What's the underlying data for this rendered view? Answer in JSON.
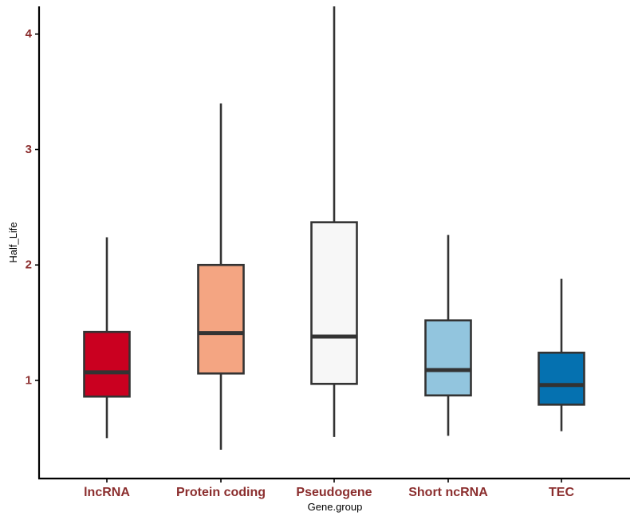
{
  "chart_data": {
    "type": "boxplot",
    "xlabel": "Gene.group",
    "ylabel": "Half_Life",
    "ylim": [
      0.15,
      4.24
    ],
    "yticks": [
      "1",
      "2",
      "3",
      "4"
    ],
    "ytick_values": [
      1,
      2,
      3,
      4
    ],
    "categories": [
      "lncRNA",
      "Protein coding",
      "Pseudogene",
      "Short ncRNA",
      "TEC"
    ],
    "boxes": [
      {
        "category": "lncRNA",
        "min": 0.5,
        "q1": 0.86,
        "median": 1.07,
        "q3": 1.42,
        "max": 2.24,
        "fill": "#ca0020"
      },
      {
        "category": "Protein coding",
        "min": 0.4,
        "q1": 1.06,
        "median": 1.41,
        "q3": 2.0,
        "max": 3.4,
        "fill": "#f4a582"
      },
      {
        "category": "Pseudogene",
        "min": 0.51,
        "q1": 0.97,
        "median": 1.38,
        "q3": 2.37,
        "max": 4.24,
        "fill": "#f7f7f7"
      },
      {
        "category": "Short ncRNA",
        "min": 0.52,
        "q1": 0.87,
        "median": 1.09,
        "q3": 1.52,
        "max": 2.26,
        "fill": "#92c5de"
      },
      {
        "category": "TEC",
        "min": 0.56,
        "q1": 0.79,
        "median": 0.96,
        "q3": 1.24,
        "max": 1.88,
        "fill": "#0571b0"
      }
    ],
    "colors": {
      "tick_label": "#8b2e2e",
      "axis": "#000000",
      "box_outline": "#333333"
    },
    "grid": false,
    "legend": "none"
  }
}
